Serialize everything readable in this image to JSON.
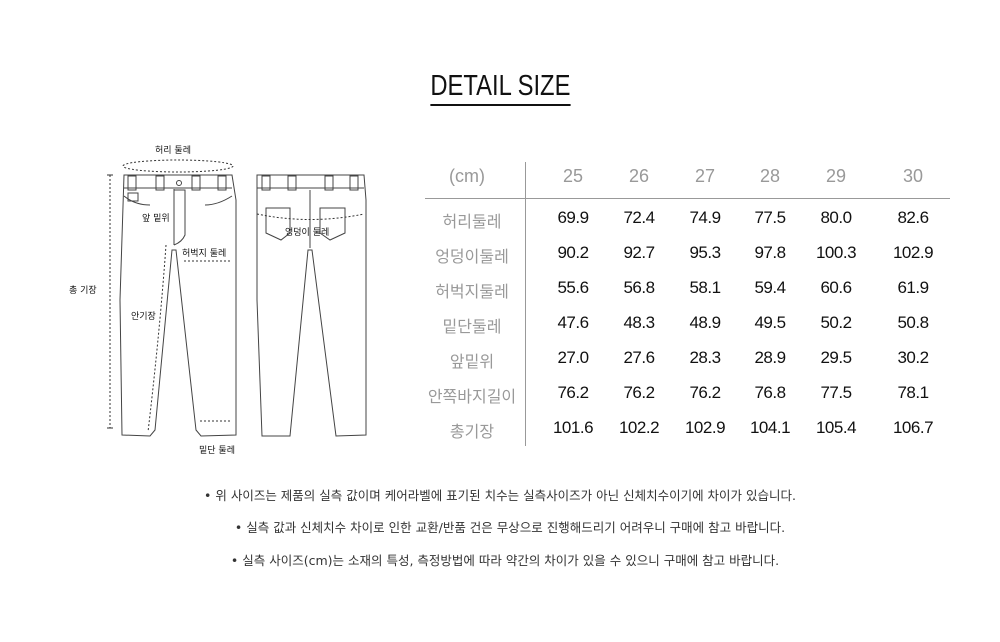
{
  "title": "DETAIL SIZE",
  "diagram": {
    "waist": "허리 둘레",
    "front_rise": "앞 밑위",
    "thigh": "허벅지 둘레",
    "total_length": "총 기장",
    "inseam": "안기장",
    "hem": "밑단 둘레",
    "hip": "엉덩이 둘레"
  },
  "table": {
    "unit": "(cm)",
    "sizes": [
      "25",
      "26",
      "27",
      "28",
      "29",
      "30"
    ],
    "rows": [
      {
        "label": "허리둘레",
        "values": [
          "69.9",
          "72.4",
          "74.9",
          "77.5",
          "80.0",
          "82.6"
        ]
      },
      {
        "label": "엉덩이둘레",
        "values": [
          "90.2",
          "92.7",
          "95.3",
          "97.8",
          "100.3",
          "102.9"
        ]
      },
      {
        "label": "허벅지둘레",
        "values": [
          "55.6",
          "56.8",
          "58.1",
          "59.4",
          "60.6",
          "61.9"
        ]
      },
      {
        "label": "밑단둘레",
        "values": [
          "47.6",
          "48.3",
          "48.9",
          "49.5",
          "50.2",
          "50.8"
        ]
      },
      {
        "label": "앞밑위",
        "values": [
          "27.0",
          "27.6",
          "28.3",
          "28.9",
          "29.5",
          "30.2"
        ]
      },
      {
        "label": "안쪽바지길이",
        "values": [
          "76.2",
          "76.2",
          "76.2",
          "76.8",
          "77.5",
          "78.1"
        ]
      },
      {
        "label": "총기장",
        "values": [
          "101.6",
          "102.2",
          "102.9",
          "104.1",
          "105.4",
          "106.7"
        ]
      }
    ]
  },
  "notes": [
    "위 사이즈는 제품의 실측 값이며 케어라벨에 표기된 치수는 실측사이즈가 아닌  신체치수이기에 차이가 있습니다.",
    "실측 값과 신체치수 차이로 인한 교환/반품 건은 무상으로 진행해드리기 어려우니 구매에 참고 바랍니다.",
    "실측 사이즈(cm)는 소재의 특성, 측정방법에 따라 약간의 차이가 있을 수 있으니 구매에 참고 바랍니다."
  ]
}
